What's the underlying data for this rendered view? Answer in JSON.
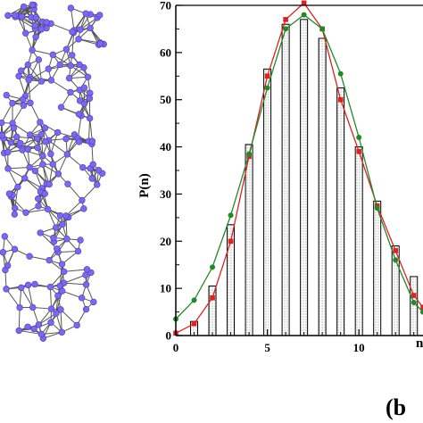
{
  "panel_label": "(b",
  "chart_data": {
    "type": "bar",
    "title": "",
    "ylabel": "P(n)",
    "xlabel": "n",
    "xlim": [
      0,
      13.5
    ],
    "ylim": [
      0,
      70
    ],
    "xticks": [
      0,
      5,
      10
    ],
    "yticks": [
      0,
      10,
      20,
      30,
      40,
      50,
      60,
      70
    ],
    "grid": false,
    "bars": {
      "x": [
        1,
        2,
        3,
        4,
        5,
        6,
        7,
        8,
        9,
        10,
        11,
        12,
        13
      ],
      "values": [
        3,
        10.5,
        23.5,
        40.5,
        56.5,
        66,
        67,
        63,
        52.5,
        40,
        28.5,
        19,
        12.5
      ]
    },
    "series": [
      {
        "color": "#dd2222",
        "marker": "square",
        "x": [
          0,
          1,
          2,
          3,
          4,
          5,
          6,
          7,
          8,
          9,
          10,
          11,
          12,
          13,
          13.5
        ],
        "values": [
          0.5,
          2.5,
          8,
          20,
          38,
          55,
          67,
          70.5,
          65,
          50,
          39,
          27.5,
          18,
          8.5,
          6
        ]
      },
      {
        "color": "#22882a",
        "marker": "circle",
        "x": [
          0,
          1,
          2,
          3,
          4,
          5,
          6,
          7,
          8,
          9,
          10,
          11,
          12,
          13,
          13.5
        ],
        "values": [
          3.5,
          7.5,
          14.5,
          25.5,
          38.5,
          52.5,
          65,
          68,
          65,
          55.5,
          42,
          27,
          16,
          7,
          5
        ]
      }
    ],
    "molecule_image": {
      "node_color": "#7b68ee",
      "edge_color": "#555555"
    }
  }
}
